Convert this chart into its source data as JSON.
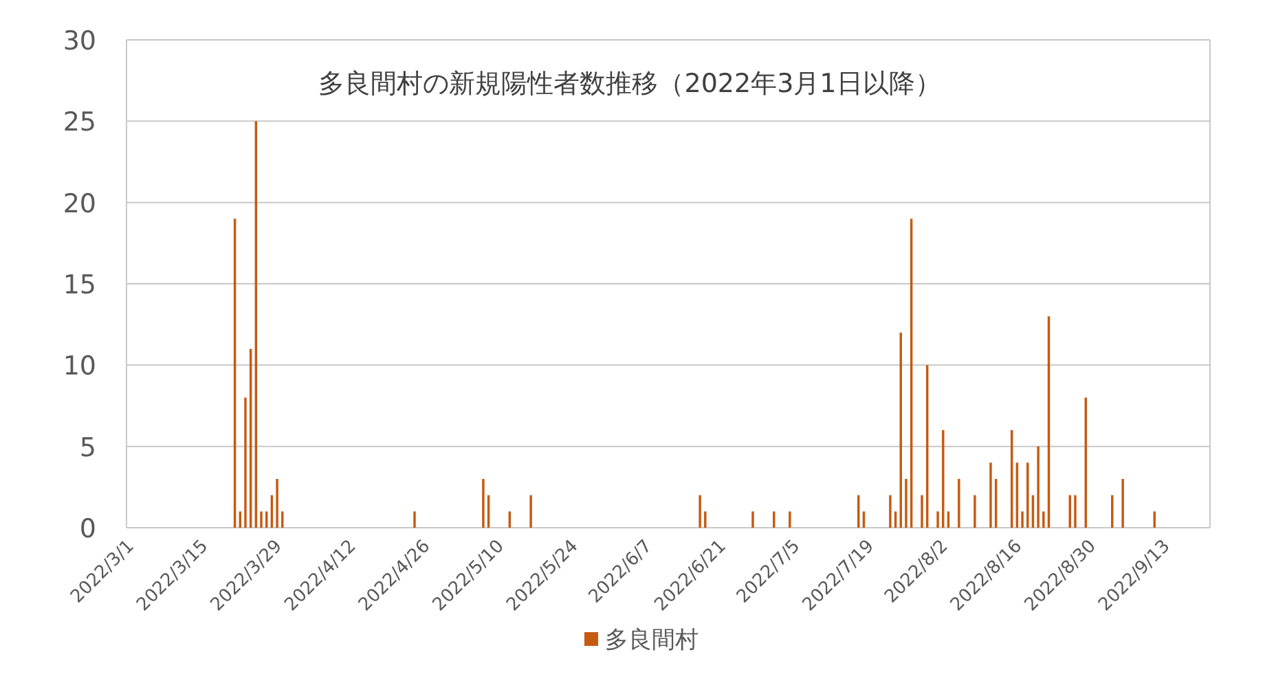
{
  "chart_data": {
    "type": "bar",
    "title": "多良間村の新規陽性者数推移（2022年3月1日以降）",
    "x": [
      "2022-03-21",
      "2022-03-22",
      "2022-03-23",
      "2022-03-24",
      "2022-03-25",
      "2022-03-26",
      "2022-03-27",
      "2022-03-28",
      "2022-03-29",
      "2022-03-30",
      "2022-04-24",
      "2022-05-07",
      "2022-05-08",
      "2022-05-12",
      "2022-05-16",
      "2022-06-17",
      "2022-06-18",
      "2022-06-27",
      "2022-07-01",
      "2022-07-04",
      "2022-07-17",
      "2022-07-18",
      "2022-07-23",
      "2022-07-24",
      "2022-07-25",
      "2022-07-26",
      "2022-07-27",
      "2022-07-29",
      "2022-07-30",
      "2022-08-01",
      "2022-08-02",
      "2022-08-03",
      "2022-08-05",
      "2022-08-08",
      "2022-08-11",
      "2022-08-12",
      "2022-08-15",
      "2022-08-16",
      "2022-08-17",
      "2022-08-18",
      "2022-08-19",
      "2022-08-20",
      "2022-08-21",
      "2022-08-22",
      "2022-08-26",
      "2022-08-27",
      "2022-08-29",
      "2022-09-03",
      "2022-09-05",
      "2022-09-11"
    ],
    "series": [
      {
        "name": "多良間村",
        "color": "#c55a11",
        "values": [
          19,
          1,
          8,
          11,
          25,
          1,
          1,
          2,
          3,
          1,
          1,
          3,
          2,
          1,
          2,
          2,
          1,
          1,
          1,
          1,
          2,
          1,
          2,
          1,
          12,
          3,
          19,
          2,
          10,
          1,
          6,
          1,
          3,
          2,
          4,
          3,
          6,
          4,
          1,
          4,
          2,
          5,
          1,
          13,
          2,
          2,
          8,
          2,
          3,
          1
        ]
      }
    ],
    "xlim": [
      "2022-03-01",
      "2022-09-21"
    ],
    "xticks": [
      {
        "value": "2022-03-01",
        "label": "2022/3/1"
      },
      {
        "value": "2022-03-15",
        "label": "2022/3/15"
      },
      {
        "value": "2022-03-29",
        "label": "2022/3/29"
      },
      {
        "value": "2022-04-12",
        "label": "2022/4/12"
      },
      {
        "value": "2022-04-26",
        "label": "2022/4/26"
      },
      {
        "value": "2022-05-10",
        "label": "2022/5/10"
      },
      {
        "value": "2022-05-24",
        "label": "2022/5/24"
      },
      {
        "value": "2022-06-07",
        "label": "2022/6/7"
      },
      {
        "value": "2022-06-21",
        "label": "2022/6/21"
      },
      {
        "value": "2022-07-05",
        "label": "2022/7/5"
      },
      {
        "value": "2022-07-19",
        "label": "2022/7/19"
      },
      {
        "value": "2022-08-02",
        "label": "2022/8/2"
      },
      {
        "value": "2022-08-16",
        "label": "2022/8/16"
      },
      {
        "value": "2022-08-30",
        "label": "2022/8/30"
      },
      {
        "value": "2022-09-13",
        "label": "2022/9/13"
      }
    ],
    "ylim": [
      0,
      30
    ],
    "yticks": [
      0,
      5,
      10,
      15,
      20,
      25,
      30
    ],
    "grid": "y",
    "legend": "bottom"
  }
}
